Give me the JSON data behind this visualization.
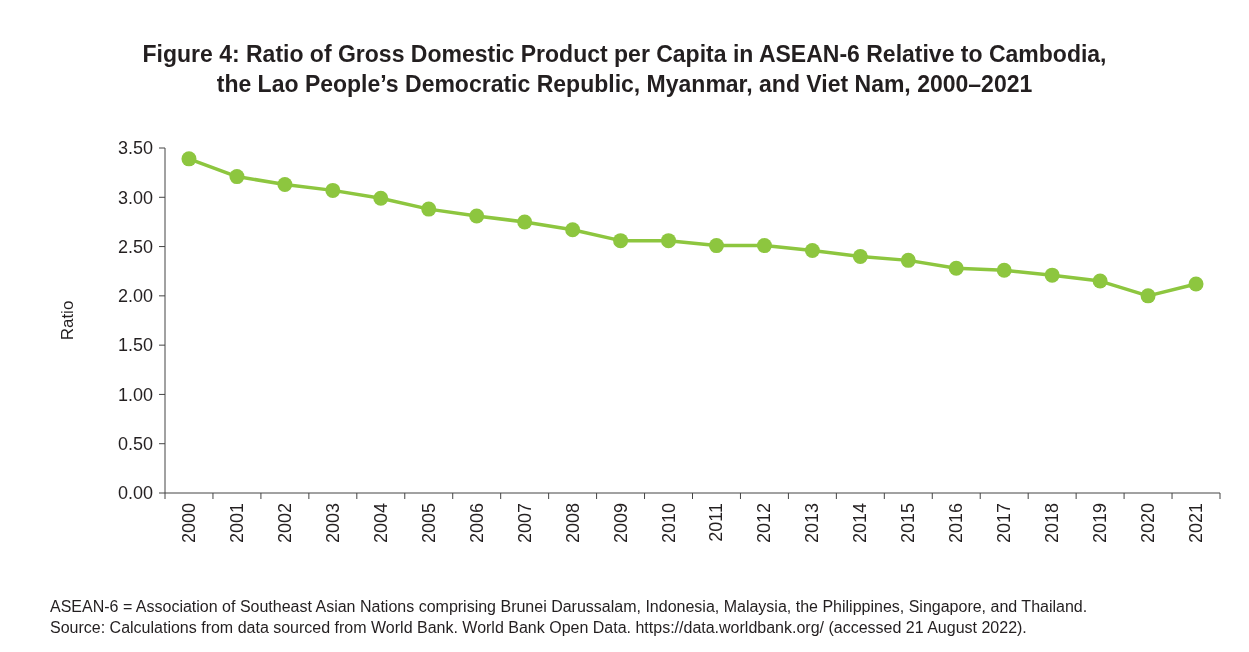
{
  "chart_data": {
    "type": "line",
    "title": "Figure 4: Ratio of Gross Domestic Product per Capita in ASEAN-6 Relative to Cambodia, the Lao People’s Democratic Republic, Myanmar, and Viet Nam, 2000–2021",
    "ylabel": "Ratio",
    "categories": [
      "2000",
      "2001",
      "2002",
      "2003",
      "2004",
      "2005",
      "2006",
      "2007",
      "2008",
      "2009",
      "2010",
      "2011",
      "2012",
      "2013",
      "2014",
      "2015",
      "2016",
      "2017",
      "2018",
      "2019",
      "2020",
      "2021"
    ],
    "series": [
      {
        "color": "#8dc63f",
        "values": [
          3.39,
          3.21,
          3.13,
          3.07,
          2.99,
          2.88,
          2.81,
          2.75,
          2.67,
          2.56,
          2.56,
          2.51,
          2.51,
          2.46,
          2.4,
          2.36,
          2.28,
          2.26,
          2.21,
          2.15,
          2.0,
          2.12
        ]
      }
    ],
    "ylim": [
      0,
      3.5
    ],
    "yticks": [
      {
        "value": 0,
        "label": "0.00"
      },
      {
        "value": 0.5,
        "label": "0.50"
      },
      {
        "value": 1,
        "label": "1.00"
      },
      {
        "value": 1.5,
        "label": "1.50"
      },
      {
        "value": 2,
        "label": "2.00"
      },
      {
        "value": 2.5,
        "label": "2.50"
      },
      {
        "value": 3,
        "label": "3.00"
      },
      {
        "value": 3.5,
        "label": "3.50"
      }
    ],
    "marker": "circle",
    "line_style": "solid",
    "annotations": [
      "ASEAN-6 = Association of Southeast Asian Nations comprising Brunei Darussalam, Indonesia, Malaysia, the Philippines, Singapore, and Thailand.",
      "Source: Calculations from data sourced from World Bank. World Bank Open Data. https://data.worldbank.org/ (accessed 21 August 2022)."
    ]
  }
}
